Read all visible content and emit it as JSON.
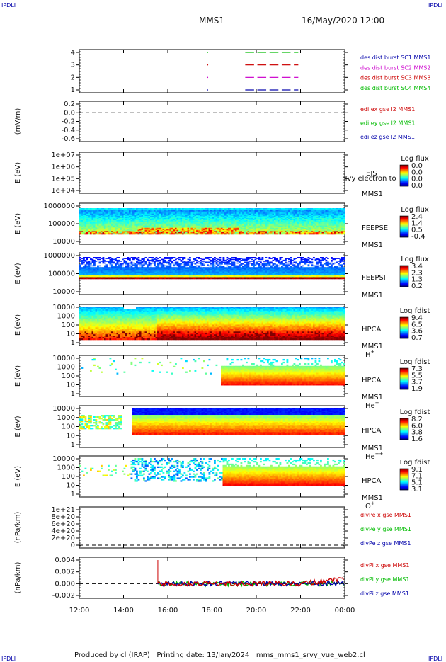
{
  "header": {
    "left_tag": "IPDLI",
    "right_tag": "IPDLI",
    "spacecraft": "MMS1",
    "datetime": "16/May/2020 12:00"
  },
  "footer": {
    "text": "Produced by cl (IRAP)   Printing date: 13/Jan/2024   mms_mms1_srvy_vue_web2.cl",
    "left_tag": "IPDLI",
    "right_tag": "IPDLI"
  },
  "x_axis": {
    "range_hours": [
      12,
      24
    ],
    "ticks": [
      12,
      14,
      16,
      18,
      20,
      22,
      24
    ],
    "tick_labels": [
      "12:00",
      "14:00",
      "16:00",
      "18:00",
      "20:00",
      "22:00",
      "00:00"
    ]
  },
  "colors": {
    "dark_blue": "#0000aa",
    "magenta": "#cc00cc",
    "red": "#cc0000",
    "green": "#00bb00"
  },
  "panels": [
    {
      "id": "burst",
      "ylabel": "",
      "ticks": [
        "4",
        "3",
        "2",
        "1"
      ],
      "legend": [
        {
          "text": "des dist burst SC1 MMS1",
          "color": "#0000aa"
        },
        {
          "text": "des dist burst SC2 MMS2",
          "color": "#cc00cc"
        },
        {
          "text": "des dist burst SC3 MMS3",
          "color": "#cc0000"
        },
        {
          "text": "des dist burst SC4 MMS4",
          "color": "#00bb00"
        }
      ]
    },
    {
      "id": "edi",
      "ylabel": "(mV/m)",
      "ticks": [
        "0.2",
        "-0.0",
        "-0.2",
        "-0.4",
        "-0.6"
      ],
      "legend": [
        {
          "text": "edi ex gse l2 MMS1",
          "color": "#cc0000"
        },
        {
          "text": "edi ey gse l2 MMS1",
          "color": "#00bb00"
        },
        {
          "text": "edi ez gse l2 MMS1",
          "color": "#0000aa"
        }
      ]
    },
    {
      "id": "eis",
      "ylabel": "E (eV)",
      "ticks": [
        "1e+07",
        "1e+06",
        "1e+05",
        "1e+04"
      ],
      "labels": [
        "EIS",
        "MMS1"
      ],
      "overlay": "Hvy electron to",
      "colorbar": {
        "title": "Log flux",
        "ticks": [
          "0.0",
          "0.0",
          "0.0",
          "0.0"
        ]
      }
    },
    {
      "id": "feepse",
      "ylabel": "E (eV)",
      "ticks": [
        "1000000",
        "100000",
        "10000"
      ],
      "labels": [
        "FEEPSE",
        "MMS1"
      ],
      "colorbar": {
        "title": "Log flux",
        "ticks": [
          "2.4",
          "1.4",
          "0.5",
          "-0.4"
        ]
      }
    },
    {
      "id": "feepsi",
      "ylabel": "E (eV)",
      "ticks": [
        "1000000",
        "100000",
        "10000"
      ],
      "labels": [
        "FEEPSI",
        "MMS1"
      ],
      "colorbar": {
        "title": "Log flux",
        "ticks": [
          "3.4",
          "2.3",
          "1.3",
          "0.2"
        ]
      }
    },
    {
      "id": "hpca_h",
      "ylabel": "E (eV)",
      "ticks": [
        "10000",
        "1000",
        "100",
        "10",
        "1"
      ],
      "labels": [
        "HPCA",
        "MMS1"
      ],
      "species": {
        "base": "H",
        "sup": "+"
      },
      "colorbar": {
        "title": "Log fdist",
        "ticks": [
          "9.4",
          "6.5",
          "3.6",
          "0.7"
        ]
      }
    },
    {
      "id": "hpca_he1",
      "ylabel": "E (eV)",
      "ticks": [
        "10000",
        "1000",
        "100",
        "10",
        "1"
      ],
      "labels": [
        "HPCA",
        "MMS1"
      ],
      "species": {
        "base": "He",
        "sup": "+"
      },
      "colorbar": {
        "title": "Log fdist",
        "ticks": [
          "7.3",
          "5.5",
          "3.7",
          "1.9"
        ]
      }
    },
    {
      "id": "hpca_he2",
      "ylabel": "E (eV)",
      "ticks": [
        "10000",
        "1000",
        "100",
        "10",
        "1"
      ],
      "labels": [
        "HPCA",
        "MMS1"
      ],
      "species": {
        "base": "He",
        "sup": "++"
      },
      "colorbar": {
        "title": "Log fdist",
        "ticks": [
          "8.2",
          "6.0",
          "3.8",
          "1.6"
        ]
      }
    },
    {
      "id": "hpca_o",
      "ylabel": "E (eV)",
      "ticks": [
        "10000",
        "1000",
        "100",
        "10",
        "1"
      ],
      "labels": [
        "HPCA",
        "MMS1"
      ],
      "species": {
        "base": "O",
        "sup": "+"
      },
      "colorbar": {
        "title": "Log fdist",
        "ticks": [
          "9.1",
          "7.1",
          "5.1",
          "3.1"
        ]
      }
    },
    {
      "id": "divpe",
      "ylabel": "(nPa/km)",
      "ticks": [
        "1e+21",
        "8e+20",
        "6e+20",
        "4e+20",
        "2e+20",
        "0"
      ],
      "legend": [
        {
          "text": "divPe x gse MMS1",
          "color": "#cc0000"
        },
        {
          "text": "divPe y gse MMS1",
          "color": "#00bb00"
        },
        {
          "text": "divPe z gse MMS1",
          "color": "#0000aa"
        }
      ]
    },
    {
      "id": "divpi",
      "ylabel": "(nPa/km)",
      "ticks": [
        "0.004",
        "0.002",
        "0.000",
        "-0.002"
      ],
      "legend": [
        {
          "text": "divPi x gse MMS1",
          "color": "#cc0000"
        },
        {
          "text": "divPi y gse MMS1",
          "color": "#00bb00"
        },
        {
          "text": "divPi z gse MMS1",
          "color": "#0000aa"
        }
      ]
    }
  ],
  "chart_data": {
    "type": "heatmap",
    "title": "MMS1",
    "x_range_hours": [
      12,
      24
    ],
    "burst_intervals": [
      {
        "sc": 1,
        "start_hour": 19.5,
        "end_hour": 21.9
      },
      {
        "sc": 2,
        "start_hour": 19.5,
        "end_hour": 21.9
      },
      {
        "sc": 3,
        "start_hour": 19.5,
        "end_hour": 21.9
      },
      {
        "sc": 4,
        "start_hour": 19.5,
        "end_hour": 21.9
      }
    ],
    "divpi": {
      "spike_hour": 15.55,
      "spike_peak": 0.004,
      "level_after_spike": 0.0,
      "noise_after_spike": 0.0004
    }
  }
}
